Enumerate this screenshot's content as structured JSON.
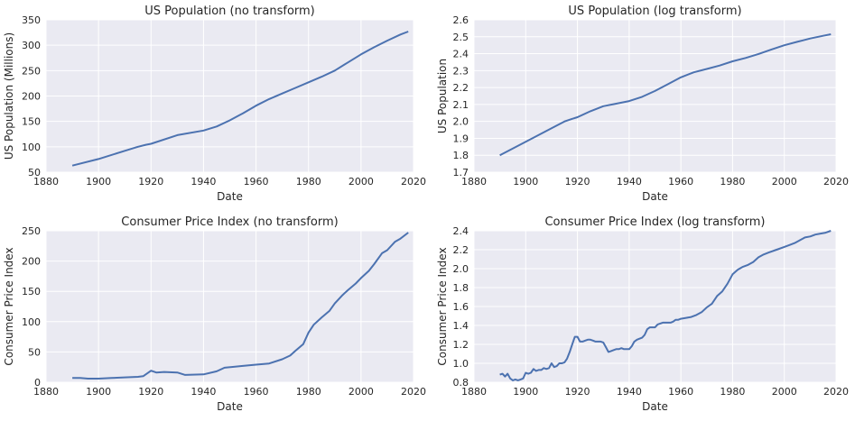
{
  "chart_data": [
    {
      "type": "line",
      "title": "US Population (no transform)",
      "xlabel": "Date",
      "ylabel": "US Population (Millions)",
      "xlim": [
        1880,
        2020
      ],
      "ylim": [
        50,
        350
      ],
      "xticks": [
        "1880",
        "1900",
        "1920",
        "1940",
        "1960",
        "1980",
        "2000",
        "2020"
      ],
      "yticks": [
        "50",
        "100",
        "150",
        "200",
        "250",
        "300",
        "350"
      ],
      "grid": true,
      "color": "#4c72b0",
      "series": [
        {
          "x": [
            1890,
            1900,
            1910,
            1915,
            1918,
            1920,
            1930,
            1940,
            1945,
            1950,
            1955,
            1960,
            1965,
            1970,
            1975,
            1980,
            1985,
            1990,
            1995,
            2000,
            2005,
            2010,
            2015,
            2018
          ],
          "values": [
            63,
            76,
            92,
            100,
            104,
            106,
            123,
            132,
            140,
            152,
            166,
            181,
            194,
            205,
            216,
            227,
            238,
            250,
            266,
            282,
            296,
            309,
            321,
            327
          ]
        }
      ]
    },
    {
      "type": "line",
      "title": "US Population (log transform)",
      "xlabel": "Date",
      "ylabel": "US Population",
      "xlim": [
        1880,
        2020
      ],
      "ylim": [
        1.7,
        2.6
      ],
      "xticks": [
        "1880",
        "1900",
        "1920",
        "1940",
        "1960",
        "1980",
        "2000",
        "2020"
      ],
      "yticks": [
        "1.7",
        "1.8",
        "1.9",
        "2.0",
        "2.1",
        "2.2",
        "2.3",
        "2.4",
        "2.5",
        "2.6"
      ],
      "grid": true,
      "color": "#4c72b0",
      "series": [
        {
          "x": [
            1890,
            1900,
            1910,
            1915,
            1918,
            1920,
            1925,
            1930,
            1935,
            1940,
            1945,
            1950,
            1955,
            1960,
            1965,
            1970,
            1975,
            1980,
            1985,
            1990,
            1995,
            2000,
            2005,
            2010,
            2015,
            2018
          ],
          "values": [
            1.8,
            1.88,
            1.96,
            2.0,
            2.015,
            2.025,
            2.06,
            2.09,
            2.105,
            2.12,
            2.145,
            2.18,
            2.22,
            2.26,
            2.29,
            2.31,
            2.33,
            2.355,
            2.375,
            2.398,
            2.425,
            2.45,
            2.47,
            2.49,
            2.506,
            2.515
          ]
        }
      ]
    },
    {
      "type": "line",
      "title": "Consumer Price Index (no transform)",
      "xlabel": "Date",
      "ylabel": "Consumer Price Index",
      "xlim": [
        1880,
        2020
      ],
      "ylim": [
        0,
        250
      ],
      "xticks": [
        "1880",
        "1900",
        "1920",
        "1940",
        "1960",
        "1980",
        "2000",
        "2020"
      ],
      "yticks": [
        "0",
        "50",
        "100",
        "150",
        "200",
        "250"
      ],
      "grid": true,
      "color": "#4c72b0",
      "series": [
        {
          "x": [
            1890,
            1893,
            1896,
            1900,
            1905,
            1910,
            1915,
            1917,
            1920,
            1922,
            1925,
            1930,
            1933,
            1940,
            1945,
            1948,
            1955,
            1960,
            1965,
            1970,
            1973,
            1975,
            1978,
            1980,
            1982,
            1985,
            1988,
            1990,
            1993,
            1995,
            1998,
            2000,
            2003,
            2005,
            2008,
            2010,
            2013,
            2015,
            2018
          ],
          "values": [
            7,
            7,
            6,
            6,
            7,
            8,
            9,
            10,
            19,
            16,
            17,
            16,
            12,
            13,
            18,
            24,
            27,
            29,
            31,
            38,
            44,
            52,
            63,
            82,
            95,
            107,
            118,
            130,
            144,
            152,
            163,
            172,
            184,
            195,
            213,
            218,
            232,
            237,
            247
          ]
        }
      ]
    },
    {
      "type": "line",
      "title": "Consumer Price Index (log transform)",
      "xlabel": "Date",
      "ylabel": "Consumer Price Index",
      "xlim": [
        1880,
        2020
      ],
      "ylim": [
        0.8,
        2.4
      ],
      "xticks": [
        "1880",
        "1900",
        "1920",
        "1940",
        "1960",
        "1980",
        "2000",
        "2020"
      ],
      "yticks": [
        "0.8",
        "1.0",
        "1.2",
        "1.4",
        "1.6",
        "1.8",
        "2.0",
        "2.2",
        "2.4"
      ],
      "grid": true,
      "color": "#4c72b0",
      "series": [
        {
          "x": [
            1890,
            1891,
            1892,
            1893,
            1894,
            1895,
            1896,
            1897,
            1898,
            1899,
            1900,
            1901,
            1902,
            1903,
            1904,
            1905,
            1906,
            1907,
            1908,
            1909,
            1910,
            1911,
            1912,
            1913,
            1914,
            1915,
            1916,
            1917,
            1918,
            1919,
            1920,
            1921,
            1922,
            1923,
            1924,
            1925,
            1926,
            1927,
            1928,
            1929,
            1930,
            1931,
            1932,
            1933,
            1934,
            1935,
            1936,
            1937,
            1938,
            1939,
            1940,
            1941,
            1942,
            1943,
            1944,
            1945,
            1946,
            1947,
            1948,
            1949,
            1950,
            1951,
            1952,
            1953,
            1954,
            1955,
            1956,
            1957,
            1958,
            1959,
            1960,
            1962,
            1964,
            1966,
            1968,
            1970,
            1972,
            1974,
            1976,
            1978,
            1980,
            1982,
            1984,
            1986,
            1988,
            1990,
            1992,
            1994,
            1996,
            1998,
            2000,
            2002,
            2004,
            2006,
            2008,
            2010,
            2012,
            2014,
            2016,
            2018
          ],
          "values": [
            0.88,
            0.89,
            0.86,
            0.89,
            0.84,
            0.82,
            0.83,
            0.82,
            0.83,
            0.84,
            0.9,
            0.89,
            0.9,
            0.94,
            0.92,
            0.93,
            0.93,
            0.95,
            0.94,
            0.95,
            1.0,
            0.96,
            0.97,
            1.0,
            1.0,
            1.01,
            1.05,
            1.12,
            1.2,
            1.28,
            1.28,
            1.23,
            1.23,
            1.24,
            1.25,
            1.25,
            1.24,
            1.23,
            1.23,
            1.23,
            1.22,
            1.17,
            1.12,
            1.13,
            1.14,
            1.15,
            1.15,
            1.16,
            1.15,
            1.15,
            1.15,
            1.18,
            1.23,
            1.25,
            1.26,
            1.27,
            1.3,
            1.36,
            1.38,
            1.38,
            1.38,
            1.41,
            1.42,
            1.43,
            1.43,
            1.43,
            1.43,
            1.44,
            1.46,
            1.46,
            1.47,
            1.48,
            1.49,
            1.51,
            1.54,
            1.59,
            1.63,
            1.71,
            1.76,
            1.84,
            1.94,
            1.99,
            2.02,
            2.04,
            2.07,
            2.12,
            2.15,
            2.17,
            2.19,
            2.21,
            2.23,
            2.25,
            2.27,
            2.3,
            2.33,
            2.34,
            2.36,
            2.37,
            2.38,
            2.4
          ]
        }
      ]
    }
  ]
}
